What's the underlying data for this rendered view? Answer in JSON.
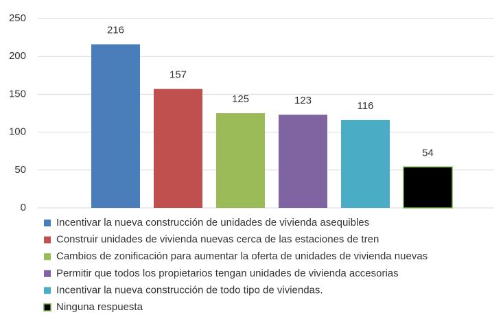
{
  "chart_data": {
    "type": "bar",
    "series": [
      {
        "name": "Incentivar la nueva construcción de unidades de vivienda asequibles",
        "color": "#4a7ebb",
        "values": [
          216
        ]
      },
      {
        "name": "Construir unidades de vivienda nuevas cerca de las estaciones de tren",
        "color": "#c0504d",
        "values": [
          157
        ]
      },
      {
        "name": "Cambios de zonificación para aumentar la oferta de unidades de vivienda nuevas",
        "color": "#9bbb59",
        "values": [
          125
        ]
      },
      {
        "name": "Permitir que todos los propietarios tengan unidades de vivienda accesorias",
        "color": "#8064a2",
        "values": [
          123
        ]
      },
      {
        "name": "Incentivar la nueva construcción de todo tipo de viviendas.",
        "color": "#4bacc6",
        "values": [
          116
        ]
      },
      {
        "name": "Ninguna respuesta",
        "color": "#000000",
        "values": [
          54
        ]
      }
    ],
    "ylim": [
      0,
      250
    ],
    "yticks": [
      0,
      50,
      100,
      150,
      200,
      250
    ],
    "grid": true,
    "legend": "bottom"
  }
}
